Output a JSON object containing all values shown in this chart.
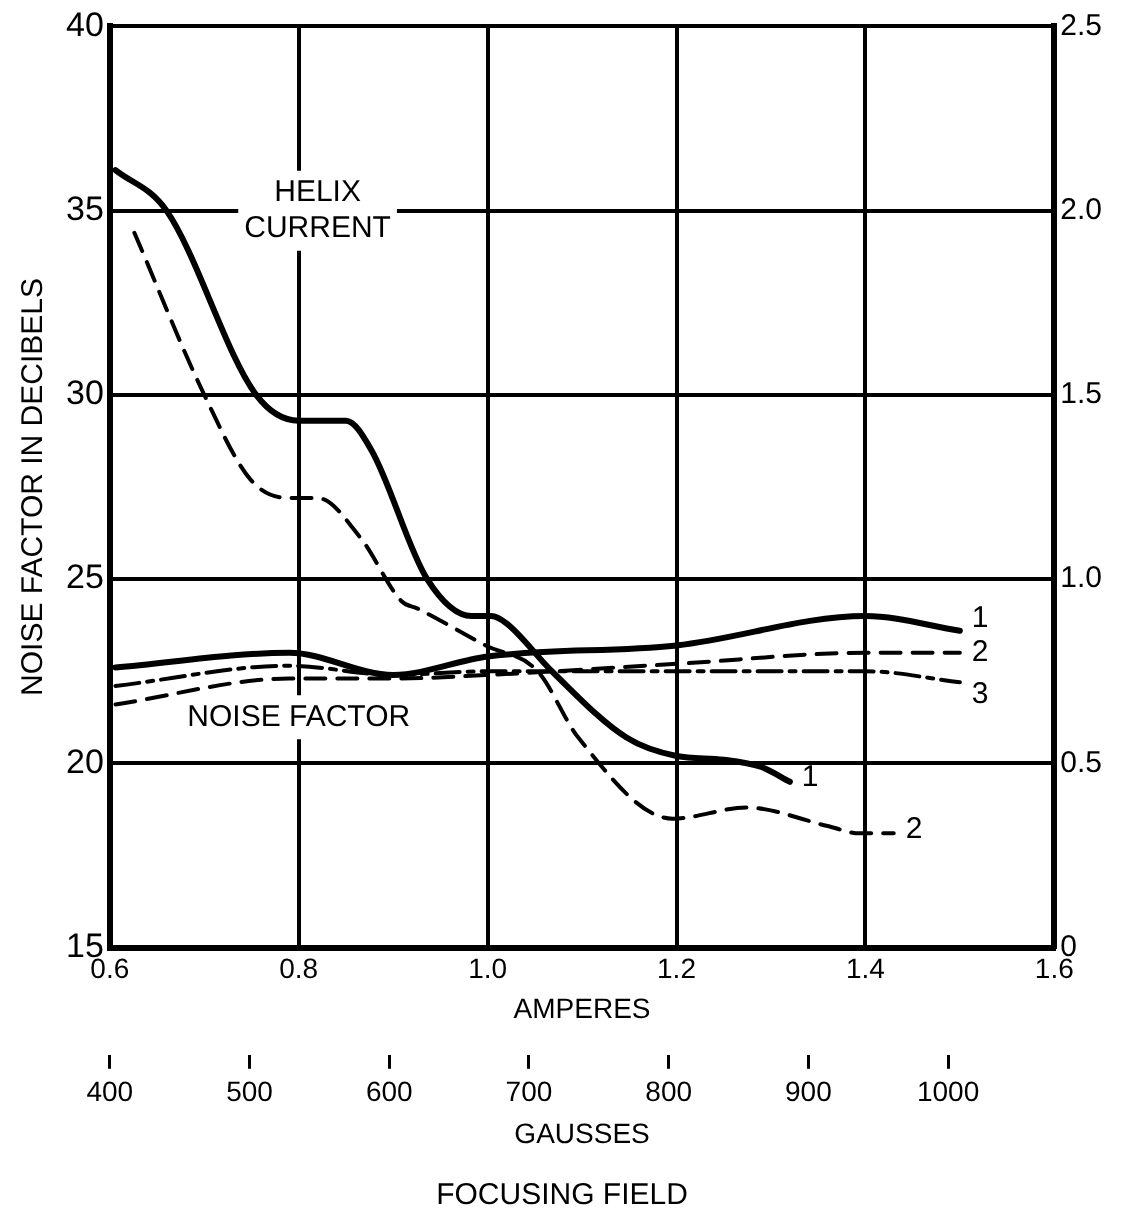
{
  "chart_data": {
    "type": "line",
    "xlabel": "AMPERES",
    "ylabel": "NOISE FACTOR IN DECIBELS",
    "x2label": "GAUSSES",
    "annotations": [
      "HELIX CURRENT",
      "NOISE FACTOR",
      "FOCUSING FIELD"
    ],
    "xlim": [
      0.6,
      1.6
    ],
    "xticks": [
      0.6,
      0.8,
      {
        "value": 1.0,
        "label": "1.0"
      },
      1.2,
      1.4,
      1.6
    ],
    "ylim": [
      15,
      40
    ],
    "yticks": [
      15,
      20,
      25,
      30,
      35,
      40
    ],
    "y2lim": [
      0,
      2.5
    ],
    "y2ticks": [
      0,
      0.5,
      {
        "value": 1.0,
        "label": "1.0"
      },
      1.5,
      {
        "value": 2.0,
        "label": "2.0"
      },
      2.5
    ],
    "x2lim": [
      400,
      1076
    ],
    "x2ticks": [
      400,
      500,
      600,
      700,
      800,
      900,
      1000
    ],
    "grid": true,
    "legend": false,
    "marker": "none",
    "series": [
      {
        "name": "1",
        "color": "#000000",
        "line_style": "solid",
        "axis": "y2",
        "x": [
          0.606,
          0.66,
          0.755,
          0.8,
          0.85,
          0.877,
          0.936,
          0.983,
          1.004,
          1.02,
          1.068,
          1.147,
          1.2,
          1.25,
          1.29,
          1.32
        ],
        "values": [
          2.11,
          2.0,
          1.5,
          1.43,
          1.43,
          1.35,
          1.0,
          0.9,
          0.9,
          0.88,
          0.75,
          0.57,
          0.52,
          0.51,
          0.49,
          0.45
        ]
      },
      {
        "name": "2",
        "color": "#000000",
        "line_style": "dashed",
        "axis": "y2",
        "x": [
          0.626,
          0.7,
          0.749,
          0.79,
          0.82,
          0.866,
          0.909,
          0.926,
          0.998,
          1.053,
          1.096,
          1.196,
          1.274,
          1.36,
          1.394,
          1.43
        ],
        "values": [
          1.94,
          1.5,
          1.27,
          1.22,
          1.22,
          1.11,
          0.94,
          0.92,
          0.82,
          0.75,
          0.57,
          0.35,
          0.38,
          0.33,
          0.31,
          0.31
        ]
      },
      {
        "name": "1",
        "color": "#000000",
        "line_style": "solid",
        "x": [
          0.606,
          0.79,
          0.9,
          1.0,
          1.2,
          1.4,
          1.5
        ],
        "values": [
          22.6,
          23.0,
          22.4,
          22.9,
          23.2,
          24.0,
          23.6
        ]
      },
      {
        "name": "2",
        "color": "#000000",
        "line_style": "dashed",
        "x": [
          0.606,
          0.79,
          0.9,
          1.0,
          1.2,
          1.4,
          1.5
        ],
        "values": [
          21.6,
          22.3,
          22.3,
          22.4,
          22.7,
          23.0,
          23.0
        ]
      },
      {
        "name": "3",
        "color": "#000000",
        "line_style": "dashdot",
        "x": [
          0.606,
          0.79,
          0.9,
          1.0,
          1.2,
          1.4,
          1.5
        ],
        "values": [
          22.1,
          22.65,
          22.4,
          22.5,
          22.5,
          22.5,
          22.2
        ]
      }
    ]
  }
}
